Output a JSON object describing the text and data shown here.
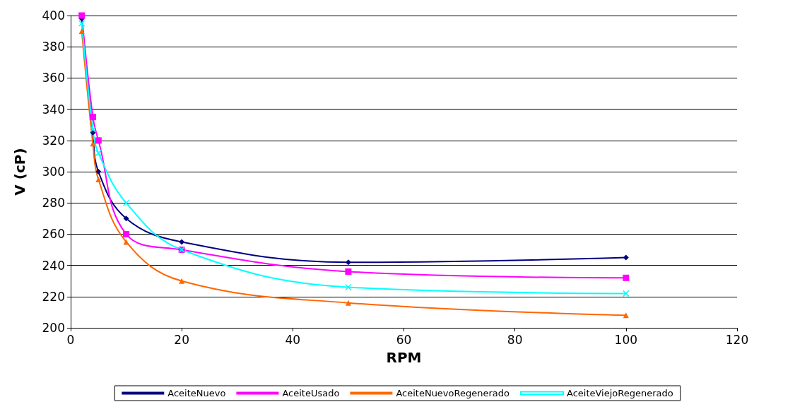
{
  "chart_data": {
    "type": "line",
    "xlabel": "RPM",
    "ylabel": "V (cP)",
    "x": [
      2,
      4,
      5,
      10,
      20,
      50,
      100
    ],
    "xlim": [
      0,
      120
    ],
    "xticks": [
      0,
      20,
      40,
      60,
      80,
      100,
      120
    ],
    "ylim": [
      200,
      400
    ],
    "yticks": [
      200,
      220,
      240,
      260,
      280,
      300,
      320,
      340,
      360,
      380,
      400
    ],
    "grid": "y",
    "legend": "bottom",
    "series": [
      {
        "name": "AceiteNuevo",
        "color": "#000080",
        "marker": "diamond",
        "values": [
          398,
          325,
          300,
          270,
          255,
          242,
          245
        ]
      },
      {
        "name": "AceiteUsado",
        "color": "#ff00ff",
        "marker": "square",
        "values": [
          400,
          335,
          320,
          260,
          250,
          236,
          232
        ]
      },
      {
        "name": "AceiteNuevoRegenerado",
        "color": "#ff6600",
        "marker": "triangle",
        "values": [
          390,
          318,
          295,
          255,
          230,
          216,
          208
        ]
      },
      {
        "name": "AceiteViejoRegenerado",
        "color": "#00ffff",
        "marker": "cross",
        "values": [
          395,
          327,
          312,
          280,
          250,
          226,
          222
        ]
      }
    ]
  }
}
